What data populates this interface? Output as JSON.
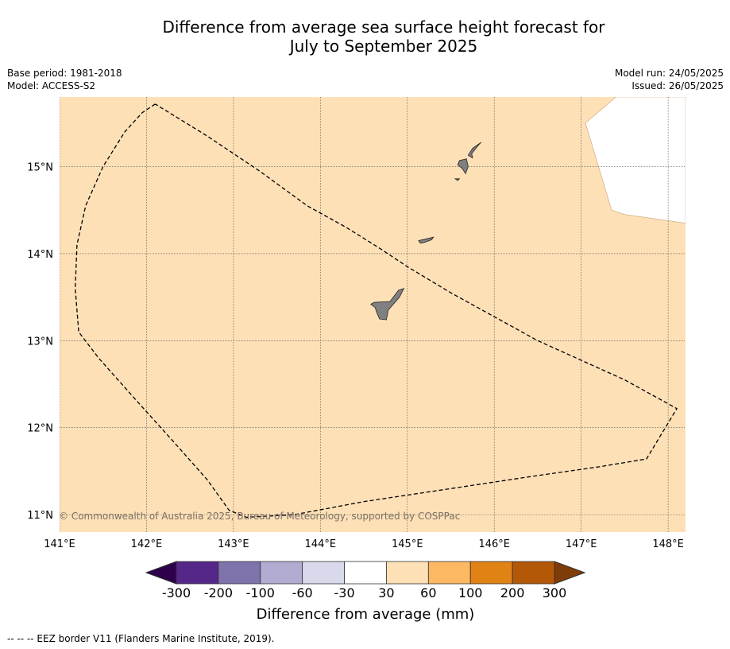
{
  "title": {
    "line1": "Difference from average sea surface height forecast for",
    "line2": "July to September 2025"
  },
  "meta_left": {
    "base_period": "Base period: 1981-2018",
    "model": "Model: ACCESS-S2"
  },
  "meta_right": {
    "model_run": "Model run: 24/05/2025",
    "issued": "Issued: 26/05/2025"
  },
  "map": {
    "lon_range": [
      141.0,
      148.2
    ],
    "lat_range": [
      10.8,
      15.8
    ],
    "fill_color": "#fde0b6",
    "land_color": "#808080",
    "gridlines": true,
    "lon_ticks": [
      {
        "value": 141,
        "label": "141°E"
      },
      {
        "value": 142,
        "label": "142°E"
      },
      {
        "value": 143,
        "label": "143°E"
      },
      {
        "value": 144,
        "label": "144°E"
      },
      {
        "value": 145,
        "label": "145°E"
      },
      {
        "value": 146,
        "label": "146°E"
      },
      {
        "value": 147,
        "label": "147°E"
      },
      {
        "value": 148,
        "label": "148°E"
      }
    ],
    "lat_ticks": [
      {
        "value": 15,
        "label": "15°N"
      },
      {
        "value": 14,
        "label": "14°N"
      },
      {
        "value": 13,
        "label": "13°N"
      },
      {
        "value": 12,
        "label": "12°N"
      },
      {
        "value": 11,
        "label": "11°N"
      }
    ],
    "no_data_area": [
      [
        147.4,
        15.8
      ],
      [
        148.2,
        15.8
      ],
      [
        148.2,
        14.35
      ],
      [
        147.5,
        14.45
      ],
      [
        147.35,
        14.5
      ],
      [
        147.05,
        15.5
      ]
    ],
    "eez_border": [
      [
        142.1,
        15.72
      ],
      [
        141.95,
        15.62
      ],
      [
        141.75,
        15.4
      ],
      [
        141.5,
        15.0
      ],
      [
        141.3,
        14.55
      ],
      [
        141.2,
        14.1
      ],
      [
        141.18,
        13.6
      ],
      [
        141.22,
        13.1
      ],
      [
        141.45,
        12.8
      ],
      [
        141.85,
        12.35
      ],
      [
        142.3,
        11.85
      ],
      [
        142.7,
        11.4
      ],
      [
        142.95,
        11.05
      ],
      [
        143.15,
        10.97
      ],
      [
        143.7,
        11.0
      ],
      [
        144.5,
        11.15
      ],
      [
        145.5,
        11.3
      ],
      [
        146.5,
        11.45
      ],
      [
        147.2,
        11.55
      ],
      [
        147.75,
        11.64
      ],
      [
        148.1,
        12.22
      ],
      [
        147.5,
        12.55
      ],
      [
        146.5,
        13.0
      ],
      [
        145.5,
        13.55
      ],
      [
        145.0,
        13.85
      ],
      [
        144.7,
        14.05
      ],
      [
        144.3,
        14.3
      ],
      [
        143.85,
        14.55
      ],
      [
        143.3,
        14.95
      ],
      [
        142.7,
        15.35
      ],
      [
        142.1,
        15.72
      ]
    ],
    "islands": [
      {
        "name": "Guam",
        "points": [
          [
            144.62,
            13.44
          ],
          [
            144.8,
            13.45
          ],
          [
            144.9,
            13.58
          ],
          [
            144.96,
            13.6
          ],
          [
            144.91,
            13.5
          ],
          [
            144.84,
            13.42
          ],
          [
            144.78,
            13.35
          ],
          [
            144.76,
            13.24
          ],
          [
            144.68,
            13.25
          ],
          [
            144.65,
            13.32
          ],
          [
            144.63,
            13.38
          ],
          [
            144.58,
            13.42
          ]
        ]
      },
      {
        "name": "Rota",
        "points": [
          [
            145.13,
            14.15
          ],
          [
            145.22,
            14.17
          ],
          [
            145.3,
            14.19
          ],
          [
            145.28,
            14.16
          ],
          [
            145.2,
            14.13
          ],
          [
            145.15,
            14.12
          ]
        ]
      },
      {
        "name": "Tinian",
        "points": [
          [
            145.6,
            15.07
          ],
          [
            145.68,
            15.09
          ],
          [
            145.7,
            15.0
          ],
          [
            145.67,
            14.92
          ],
          [
            145.63,
            14.98
          ],
          [
            145.58,
            15.02
          ]
        ]
      },
      {
        "name": "Saipan",
        "points": [
          [
            145.74,
            15.15
          ],
          [
            145.82,
            15.25
          ],
          [
            145.85,
            15.28
          ],
          [
            145.75,
            15.21
          ],
          [
            145.7,
            15.13
          ],
          [
            145.75,
            15.1
          ]
        ]
      },
      {
        "name": "Aguijan",
        "points": [
          [
            145.55,
            14.86
          ],
          [
            145.6,
            14.86
          ],
          [
            145.58,
            14.84
          ]
        ]
      }
    ],
    "copyright": "© Commonwealth of Australia 2025, Bureau of Meteorology, supported by COSPPac"
  },
  "colorbar": {
    "title": "Difference from average (mm)",
    "under_color": "#2d004b",
    "over_color": "#7f3b08",
    "bins": [
      "#542788",
      "#8073ac",
      "#b2abd2",
      "#d8daeb",
      "#ffffff",
      "#fee0b6",
      "#fdb863",
      "#e08214",
      "#b35806"
    ],
    "tick_labels": [
      "-300",
      "-200",
      "-100",
      "-60",
      "-30",
      "30",
      "60",
      "100",
      "200",
      "300"
    ]
  },
  "footnote": "--  --  -- EEZ border V11 (Flanders Marine Institute, 2019)."
}
